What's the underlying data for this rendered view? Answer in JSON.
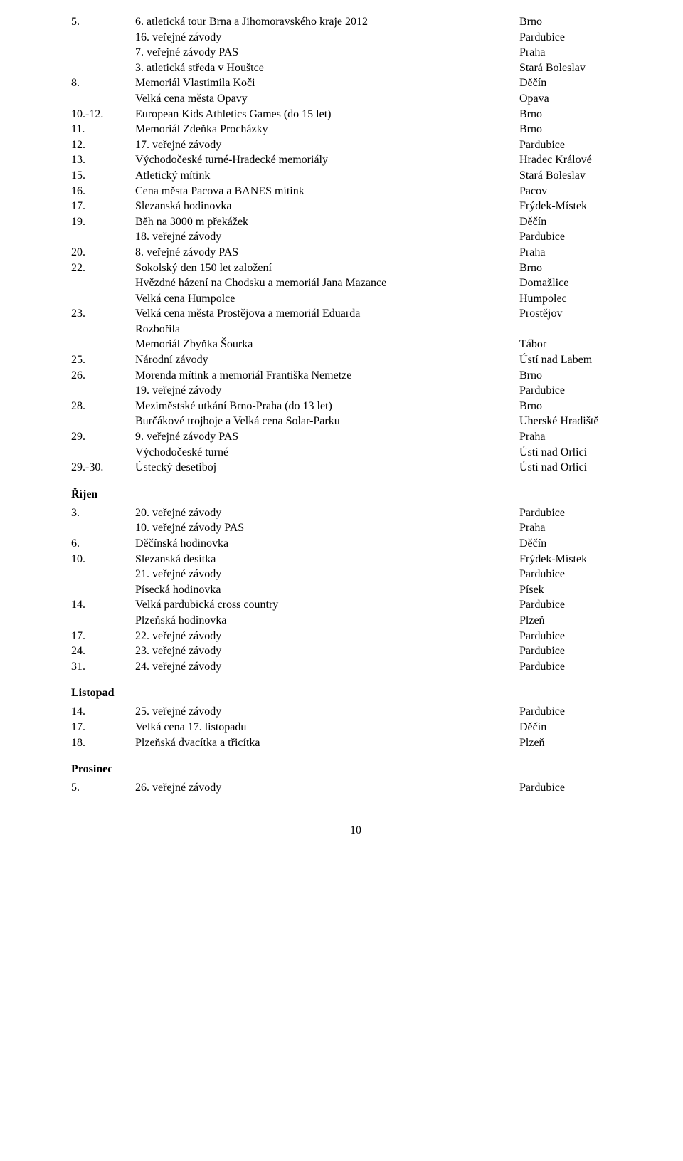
{
  "first_block": [
    {
      "left": "5.",
      "mid": "6. atletická tour Brna a Jihomoravského kraje 2012",
      "right": "Brno"
    },
    {
      "left": "",
      "mid": "16. veřejné závody",
      "right": "Pardubice"
    },
    {
      "left": "",
      "mid": "7. veřejné závody PAS",
      "right": "Praha"
    },
    {
      "left": "",
      "mid": "3. atletická středa v Houštce",
      "right": "Stará Boleslav"
    },
    {
      "left": "8.",
      "mid": "Memoriál Vlastimila Koči",
      "right": "Děčín"
    },
    {
      "left": "",
      "mid": "Velká cena města Opavy",
      "right": "Opava"
    },
    {
      "left": "10.-12.",
      "mid": "European Kids Athletics Games (do 15 let)",
      "right": "Brno"
    },
    {
      "left": "11.",
      "mid": "Memoriál Zdeňka Procházky",
      "right": "Brno"
    },
    {
      "left": "12.",
      "mid": "17. veřejné závody",
      "right": "Pardubice"
    },
    {
      "left": "13.",
      "mid": "Východočeské turné-Hradecké memoriály",
      "right": "Hradec Králové"
    },
    {
      "left": "15.",
      "mid": "Atletický mítink",
      "right": "Stará Boleslav"
    },
    {
      "left": "16.",
      "mid": "Cena města Pacova a BANES mítink",
      "right": "Pacov"
    },
    {
      "left": "17.",
      "mid": "Slezanská hodinovka",
      "right": "Frýdek-Místek"
    },
    {
      "left": "19.",
      "mid": "Běh na 3000 m překážek",
      "right": "Děčín"
    },
    {
      "left": "",
      "mid": "18. veřejné závody",
      "right": "Pardubice"
    },
    {
      "left": "20.",
      "mid": "8. veřejné závody PAS",
      "right": "Praha"
    },
    {
      "left": "22.",
      "mid": "Sokolský den 150 let založení",
      "right": "Brno"
    },
    {
      "left": "",
      "mid": "Hvězdné házení na Chodsku a memoriál Jana Mazance",
      "right": "Domažlice"
    },
    {
      "left": "",
      "mid": "Velká cena Humpolce",
      "right": "Humpolec"
    },
    {
      "left": "23.",
      "mid": "Velká cena města Prostějova a memoriál Eduarda",
      "right": "Prostějov"
    },
    {
      "left": "",
      "mid": "Rozbořila",
      "right": ""
    },
    {
      "left": "",
      "mid": "Memoriál Zbyňka Šourka",
      "right": "Tábor"
    },
    {
      "left": "25.",
      "mid": "Národní závody",
      "right": "Ústí nad Labem"
    },
    {
      "left": "26.",
      "mid": "Morenda mítink a memoriál Františka Nemetze",
      "right": "Brno"
    },
    {
      "left": "",
      "mid": "19. veřejné závody",
      "right": "Pardubice"
    },
    {
      "left": "28.",
      "mid": "Meziměstské utkání Brno-Praha (do 13 let)",
      "right": "Brno"
    },
    {
      "left": "",
      "mid": "Burčákové trojboje a Velká cena Solar-Parku",
      "right": "Uherské Hradiště"
    },
    {
      "left": "29.",
      "mid": "9. veřejné závody PAS",
      "right": "Praha"
    },
    {
      "left": "",
      "mid": "Východočeské turné",
      "right": "Ústí nad Orlicí"
    },
    {
      "left": "29.-30.",
      "mid": "Ústecký desetiboj",
      "right": "Ústí nad Orlicí"
    }
  ],
  "sections": [
    {
      "heading": "Říjen",
      "rows": [
        {
          "left": "3.",
          "mid": "20. veřejné závody",
          "right": "Pardubice"
        },
        {
          "left": "",
          "mid": "10. veřejné závody PAS",
          "right": "Praha"
        },
        {
          "left": "6.",
          "mid": "Děčínská hodinovka",
          "right": "Děčín"
        },
        {
          "left": "10.",
          "mid": "Slezanská desítka",
          "right": "Frýdek-Místek"
        },
        {
          "left": "",
          "mid": "21. veřejné závody",
          "right": "Pardubice"
        },
        {
          "left": "",
          "mid": "Písecká hodinovka",
          "right": "Písek"
        },
        {
          "left": "14.",
          "mid": "Velká pardubická cross country",
          "right": "Pardubice"
        },
        {
          "left": "",
          "mid": "Plzeňská hodinovka",
          "right": "Plzeň"
        },
        {
          "left": "17.",
          "mid": "22. veřejné závody",
          "right": "Pardubice"
        },
        {
          "left": "24.",
          "mid": "23. veřejné závody",
          "right": "Pardubice"
        },
        {
          "left": "31.",
          "mid": "24. veřejné závody",
          "right": "Pardubice"
        }
      ]
    },
    {
      "heading": "Listopad",
      "rows": [
        {
          "left": "14.",
          "mid": "25. veřejné závody",
          "right": "Pardubice"
        },
        {
          "left": "17.",
          "mid": "Velká cena 17. listopadu",
          "right": "Děčín"
        },
        {
          "left": "18.",
          "mid": "Plzeňská dvacítka a třicítka",
          "right": "Plzeň"
        }
      ]
    },
    {
      "heading": "Prosinec",
      "rows": [
        {
          "left": "5.",
          "mid": "26. veřejné závody",
          "right": "Pardubice"
        }
      ]
    }
  ],
  "page_number": "10"
}
